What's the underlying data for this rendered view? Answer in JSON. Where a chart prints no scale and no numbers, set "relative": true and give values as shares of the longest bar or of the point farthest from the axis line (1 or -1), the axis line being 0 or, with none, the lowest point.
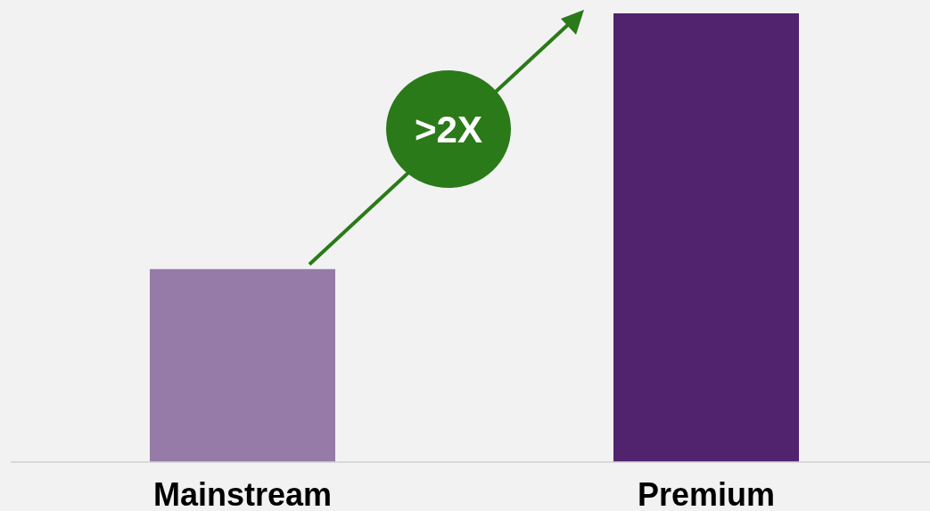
{
  "chart_data": {
    "type": "bar",
    "categories": [
      "Mainstream",
      "Premium"
    ],
    "relative": true,
    "values": [
      0.43,
      1
    ],
    "colors": [
      "#967aa8",
      "#51226e"
    ],
    "annotations": [
      ">2X"
    ]
  }
}
